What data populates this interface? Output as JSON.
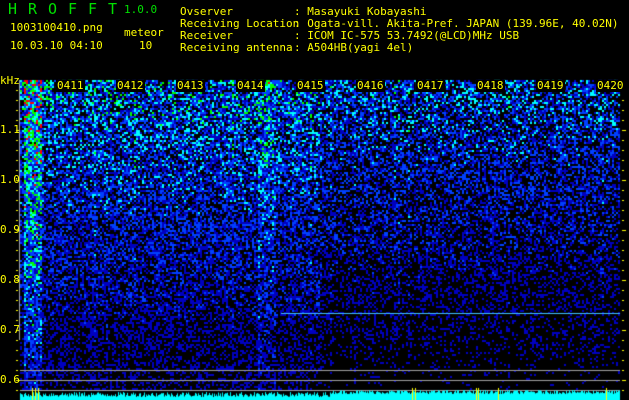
{
  "app": {
    "title_letters": [
      "H",
      "R",
      "O",
      "F",
      "F",
      "T"
    ],
    "version": "1.0.0"
  },
  "file": {
    "name": "1003100410.png",
    "datetime": "10.03.10 04:10"
  },
  "meteor": {
    "label": "meteor",
    "count": "10"
  },
  "info": [
    {
      "label": "Ovserver",
      "value": ": Masayuki Kobayashi"
    },
    {
      "label": "Receiving Location",
      "value": ": Ogata-vill. Akita-Pref. JAPAN (139.96E, 40.02N)"
    },
    {
      "label": "Receiver",
      "value": ": ICOM IC-575 53.7492(@LCD)MHz USB"
    },
    {
      "label": "Receiving antenna",
      "value": ": A504HB(yagi 4el)"
    }
  ],
  "colors": {
    "text": "#ffff00",
    "title": "#00e000",
    "background": "#000000",
    "level_bars": "#00ffff",
    "reference_lines": "#a0a0a0"
  },
  "chart_data": {
    "type": "heatmap",
    "ylabel": "kHz",
    "y_ticks": [
      "1.1",
      "1.0",
      "0.9",
      "0.8",
      "0.7",
      "0.6"
    ],
    "ylim": [
      0.56,
      1.2
    ],
    "x_ticks": [
      "0411",
      "0412",
      "0413",
      "0414",
      "0415",
      "0416",
      "0417",
      "0418",
      "0419",
      "0420"
    ],
    "colormap": [
      "#000000",
      "#0000c0",
      "#0040ff",
      "#00ffff",
      "#00ff00",
      "#ff0000"
    ],
    "features": [
      {
        "kind": "carrier-line",
        "frequency_khz": 0.734,
        "from": "0415",
        "to": "0420"
      },
      {
        "kind": "reference-line",
        "frequency_khz": 0.62
      },
      {
        "kind": "reference-line",
        "frequency_khz": 0.6
      },
      {
        "kind": "reference-line",
        "frequency_khz": 0.58
      }
    ]
  }
}
